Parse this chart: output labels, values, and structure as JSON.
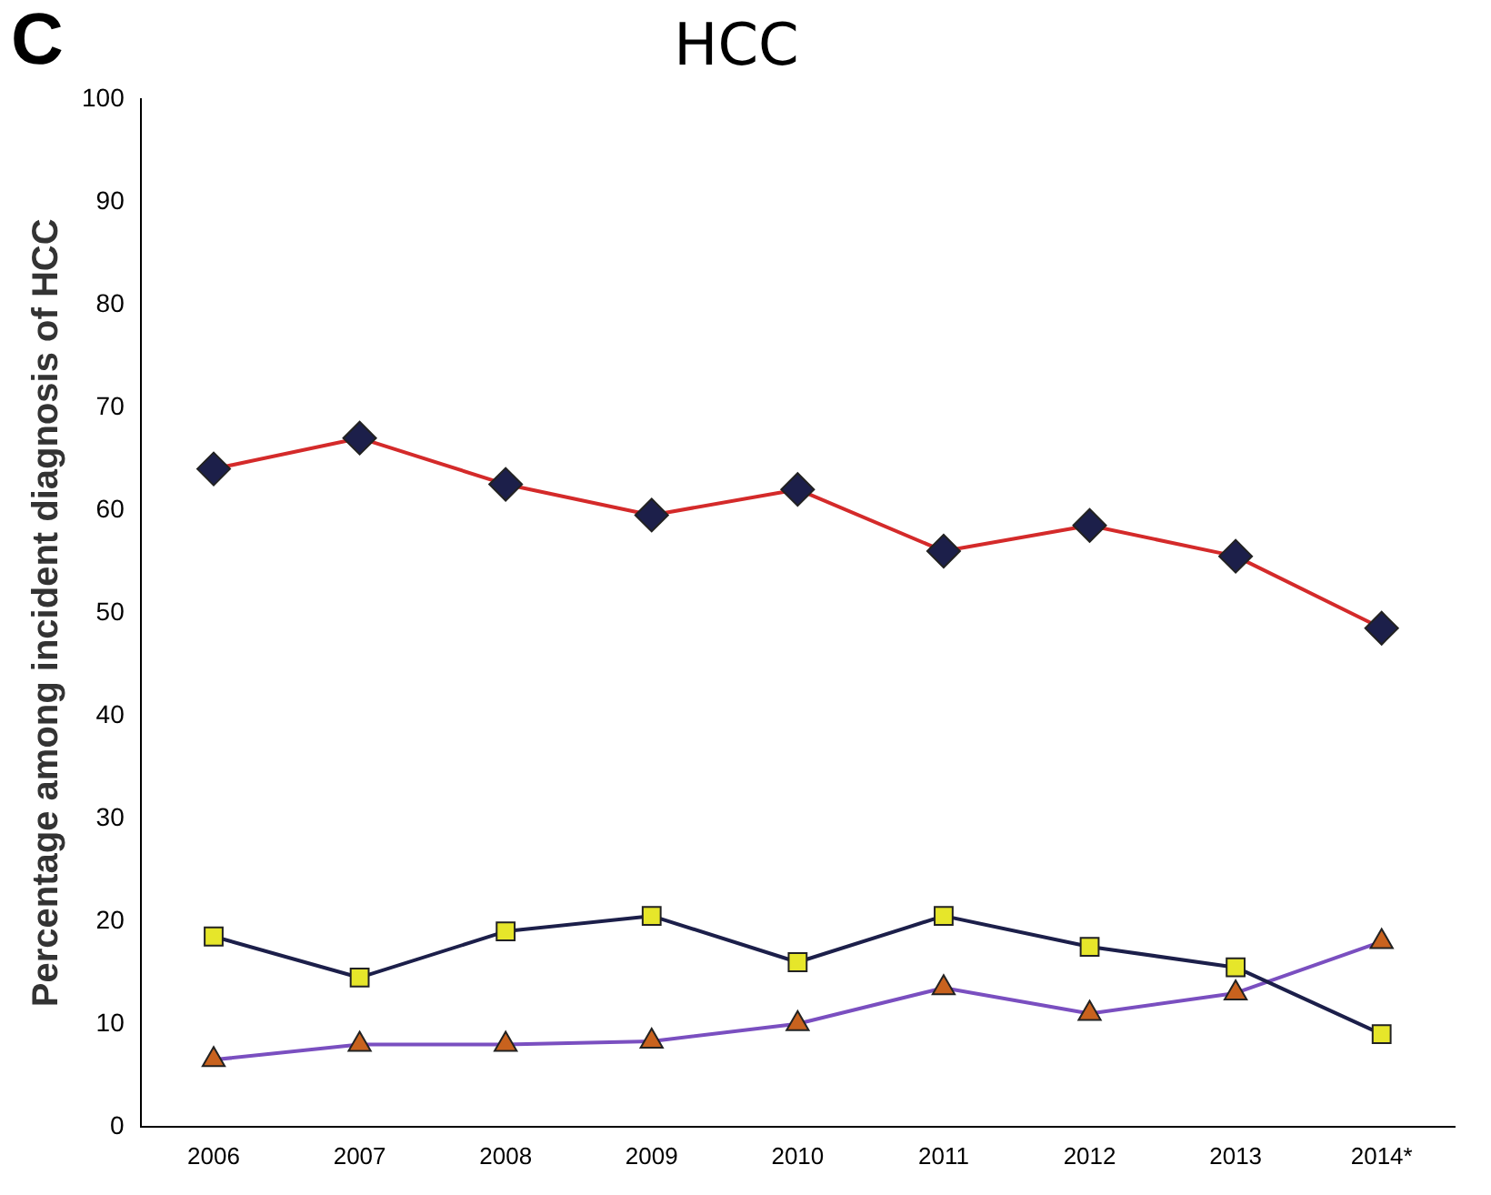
{
  "chart_data": {
    "type": "line",
    "title": "HCC",
    "ylabel": "Percentage among incident diagnosis of HCC",
    "annotations": [
      "C"
    ],
    "categories": [
      "2006",
      "2007",
      "2008",
      "2009",
      "2010",
      "2011",
      "2012",
      "2013",
      "2014*"
    ],
    "series": [
      {
        "color": "#1c1f4a",
        "marker": "diamond",
        "values": [
          64,
          67,
          62.5,
          59.5,
          62,
          56,
          58.5,
          55.5,
          48.5
        ]
      },
      {
        "color": "#e6e62a",
        "marker": "square",
        "values": [
          18.5,
          14.5,
          19,
          20.5,
          16,
          20.5,
          17.5,
          15.5,
          9
        ]
      },
      {
        "color": "#c8621e",
        "marker": "triangle",
        "values": [
          6.5,
          8,
          8,
          8.3,
          10,
          13.5,
          11,
          13,
          18
        ]
      }
    ],
    "ylim": [
      0,
      100
    ],
    "yticks": [
      0,
      10,
      20,
      30,
      40,
      50,
      60,
      70,
      80,
      90,
      100
    ],
    "grid": false,
    "legend": false
  }
}
